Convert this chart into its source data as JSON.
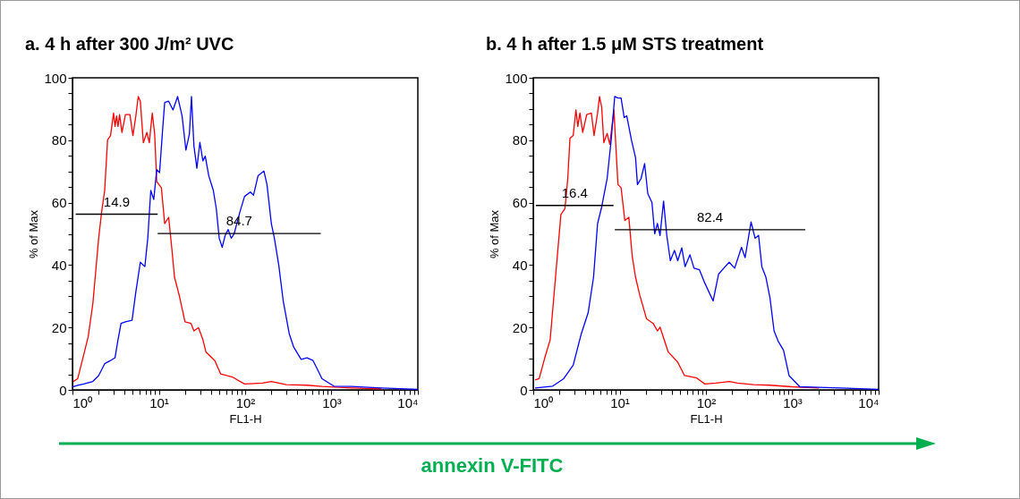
{
  "chart_data": [
    {
      "type": "line",
      "title": "a.     4 h after 300 J/m²  UVC",
      "xlabel": "FL1-H",
      "ylabel": "% of Max",
      "log": "x",
      "grid": false,
      "xlim": [
        1,
        10000
      ],
      "ylim": [
        0,
        100
      ],
      "xticks": [
        {
          "value": 1,
          "label": "10⁰"
        },
        {
          "value": 2,
          "label": null
        },
        {
          "value": 3,
          "label": null
        },
        {
          "value": 4,
          "label": null
        },
        {
          "value": 5,
          "label": null
        },
        {
          "value": 6,
          "label": null
        },
        {
          "value": 7,
          "label": null
        },
        {
          "value": 8,
          "label": null
        },
        {
          "value": 9,
          "label": null
        },
        {
          "value": 10,
          "label": "10¹"
        },
        {
          "value": 20,
          "label": null
        },
        {
          "value": 30,
          "label": null
        },
        {
          "value": 40,
          "label": null
        },
        {
          "value": 50,
          "label": null
        },
        {
          "value": 60,
          "label": null
        },
        {
          "value": 70,
          "label": null
        },
        {
          "value": 80,
          "label": null
        },
        {
          "value": 90,
          "label": null
        },
        {
          "value": 100,
          "label": "10²"
        },
        {
          "value": 200,
          "label": null
        },
        {
          "value": 300,
          "label": null
        },
        {
          "value": 400,
          "label": null
        },
        {
          "value": 500,
          "label": null
        },
        {
          "value": 600,
          "label": null
        },
        {
          "value": 700,
          "label": null
        },
        {
          "value": 800,
          "label": null
        },
        {
          "value": 900,
          "label": null
        },
        {
          "value": 1000,
          "label": "10³"
        },
        {
          "value": 2000,
          "label": null
        },
        {
          "value": 3000,
          "label": null
        },
        {
          "value": 4000,
          "label": null
        },
        {
          "value": 5000,
          "label": null
        },
        {
          "value": 6000,
          "label": null
        },
        {
          "value": 7000,
          "label": null
        },
        {
          "value": 8000,
          "label": null
        },
        {
          "value": 9000,
          "label": null
        },
        {
          "value": 10000,
          "label": "10⁴"
        }
      ],
      "yticks": [
        0,
        {
          "value": 5,
          "label": null
        },
        {
          "value": 10,
          "label": null
        },
        {
          "value": 15,
          "label": null
        },
        20,
        {
          "value": 25,
          "label": null
        },
        {
          "value": 30,
          "label": null
        },
        {
          "value": 35,
          "label": null
        },
        40,
        {
          "value": 45,
          "label": null
        },
        {
          "value": 50,
          "label": null
        },
        {
          "value": 55,
          "label": null
        },
        60,
        {
          "value": 65,
          "label": null
        },
        {
          "value": 70,
          "label": null
        },
        {
          "value": 75,
          "label": null
        },
        80,
        {
          "value": 85,
          "label": null
        },
        {
          "value": 90,
          "label": null
        },
        {
          "value": 95,
          "label": null
        },
        100
      ],
      "series": [
        {
          "color": "#ff0000",
          "x": [
            1.02,
            1.15,
            1.35,
            1.52,
            1.72,
            2.01,
            2.18,
            2.36,
            2.55,
            2.76,
            2.99,
            3.11,
            3.24,
            3.37,
            3.51,
            3.74,
            4.11,
            4.63,
            5.01,
            5.42,
            5.78,
            6.11,
            6.62,
            7.28,
            7.76,
            8.4,
            8.95,
            9.46,
            10.7,
            11.7,
            13,
            14.1,
            15.2,
            17.2,
            20.1,
            23.6,
            25.5,
            28.8,
            32.4,
            35.1,
            44.5,
            52.1,
            71.6,
            98.4,
            158,
            201,
            299,
            521,
            776,
            1715,
            3795
          ],
          "values": [
            2.7,
            3.6,
            11.3,
            17,
            27.5,
            48.6,
            57.2,
            63.9,
            80.1,
            81.5,
            88.7,
            84.4,
            87.8,
            84.4,
            88.2,
            82.5,
            88.2,
            88.2,
            81.5,
            87.8,
            94,
            92.5,
            79.2,
            82.5,
            79.2,
            88.7,
            82,
            66.7,
            64.8,
            53.3,
            55.3,
            45.7,
            36.1,
            30.4,
            21.8,
            21.3,
            18.9,
            19.9,
            16.1,
            12.2,
            9.4,
            5.1,
            4.1,
            1.9,
            2.2,
            2.7,
            1.7,
            1.5,
            1.1,
            0.6,
            0.3
          ]
        },
        {
          "color": "#0000ff",
          "x": [
            1,
            1.15,
            1.35,
            1.72,
            2.01,
            2.36,
            2.76,
            3.11,
            3.37,
            3.65,
            4.11,
            4.9,
            5.42,
            6.11,
            6.89,
            7.45,
            8.07,
            8.74,
            9.46,
            10.2,
            11.1,
            11.7,
            13,
            14.6,
            16.5,
            18.6,
            20.6,
            22.6,
            23.9,
            25.5,
            27.6,
            29.9,
            32.4,
            34.5,
            37.9,
            42.8,
            46.3,
            50.1,
            54.2,
            58.7,
            63.6,
            68.9,
            74.5,
            87.3,
            98.4,
            115,
            125,
            141,
            165,
            179,
            201,
            218,
            245,
            276,
            324,
            365,
            445,
            521,
            611,
            689,
            776,
            1066,
            1715,
            3795,
            10000
          ],
          "values": [
            1,
            1.5,
            1.9,
            2.7,
            4.6,
            8.4,
            9.4,
            10.3,
            16.1,
            21.3,
            21.8,
            22.3,
            31.4,
            40.9,
            39.5,
            48.6,
            63.9,
            61,
            70.6,
            69.6,
            83.9,
            92.1,
            92.5,
            89.7,
            94,
            87.8,
            76.8,
            82,
            94,
            78.2,
            71,
            79.3,
            73.4,
            74.9,
            68.6,
            63.9,
            58.1,
            48.6,
            45.7,
            49.5,
            51.4,
            48.6,
            50,
            57.2,
            62,
            63.4,
            62.4,
            68.6,
            70.1,
            65.8,
            53.3,
            48.6,
            40,
            28.5,
            18,
            13.7,
            9.8,
            10.3,
            9.4,
            6.5,
            3.6,
            1.2,
            1.1,
            0.6,
            0.2
          ]
        },
        {
          "color": "#000000",
          "x": [
            1.09,
            9.7
          ],
          "values": [
            56.3,
            56.3
          ]
        },
        {
          "color": "#000000",
          "x": [
            9.7,
            751
          ],
          "values": [
            50.1,
            50.1
          ]
        }
      ],
      "annotations": [
        {
          "text": "14.9",
          "x": 3.25,
          "y": 56.3
        },
        {
          "text": "84.7",
          "x": 85.3,
          "y": 50.1
        },
        "annexin V-FITC"
      ]
    },
    {
      "type": "line",
      "title": "b.     4 h after 1.5 μM STS treatment",
      "xlabel": "FL1-H",
      "ylabel": "% of Max",
      "log": "x",
      "grid": false,
      "xlim": [
        1,
        10000
      ],
      "ylim": [
        0,
        100
      ],
      "xticks": [
        {
          "value": 1,
          "label": "10⁰"
        },
        {
          "value": 2,
          "label": null
        },
        {
          "value": 3,
          "label": null
        },
        {
          "value": 4,
          "label": null
        },
        {
          "value": 5,
          "label": null
        },
        {
          "value": 6,
          "label": null
        },
        {
          "value": 7,
          "label": null
        },
        {
          "value": 8,
          "label": null
        },
        {
          "value": 9,
          "label": null
        },
        {
          "value": 10,
          "label": "10¹"
        },
        {
          "value": 20,
          "label": null
        },
        {
          "value": 30,
          "label": null
        },
        {
          "value": 40,
          "label": null
        },
        {
          "value": 50,
          "label": null
        },
        {
          "value": 60,
          "label": null
        },
        {
          "value": 70,
          "label": null
        },
        {
          "value": 80,
          "label": null
        },
        {
          "value": 90,
          "label": null
        },
        {
          "value": 100,
          "label": "10²"
        },
        {
          "value": 200,
          "label": null
        },
        {
          "value": 300,
          "label": null
        },
        {
          "value": 400,
          "label": null
        },
        {
          "value": 500,
          "label": null
        },
        {
          "value": 600,
          "label": null
        },
        {
          "value": 700,
          "label": null
        },
        {
          "value": 800,
          "label": null
        },
        {
          "value": 900,
          "label": null
        },
        {
          "value": 1000,
          "label": "10³"
        },
        {
          "value": 2000,
          "label": null
        },
        {
          "value": 3000,
          "label": null
        },
        {
          "value": 4000,
          "label": null
        },
        {
          "value": 5000,
          "label": null
        },
        {
          "value": 6000,
          "label": null
        },
        {
          "value": 7000,
          "label": null
        },
        {
          "value": 8000,
          "label": null
        },
        {
          "value": 9000,
          "label": null
        },
        {
          "value": 10000,
          "label": "10⁴"
        }
      ],
      "yticks": [
        0,
        {
          "value": 5,
          "label": null
        },
        {
          "value": 10,
          "label": null
        },
        {
          "value": 15,
          "label": null
        },
        20,
        {
          "value": 25,
          "label": null
        },
        {
          "value": 30,
          "label": null
        },
        {
          "value": 35,
          "label": null
        },
        40,
        {
          "value": 45,
          "label": null
        },
        {
          "value": 50,
          "label": null
        },
        {
          "value": 55,
          "label": null
        },
        60,
        {
          "value": 65,
          "label": null
        },
        {
          "value": 70,
          "label": null
        },
        {
          "value": 75,
          "label": null
        },
        80,
        {
          "value": 85,
          "label": null
        },
        {
          "value": 90,
          "label": null
        },
        {
          "value": 95,
          "label": null
        },
        100
      ],
      "series": [
        {
          "color": "#ff0000",
          "x": [
            1.05,
            1.17,
            1.36,
            1.57,
            1.81,
            2.09,
            2.33,
            2.51,
            2.66,
            2.9,
            3.12,
            3.28,
            3.47,
            3.74,
            4.16,
            4.71,
            5.06,
            5.56,
            5.85,
            6.2,
            6.57,
            7.17,
            7.7,
            8.59,
            9.57,
            10.4,
            11.5,
            12.8,
            14,
            15.3,
            17.1,
            20.5,
            24.5,
            27.4,
            29.4,
            32.8,
            36.5,
            47.1,
            56.5,
            78.2,
            97.1,
            130,
            186,
            232,
            357,
            552,
            986,
            2032
          ],
          "values": [
            3.2,
            3.6,
            10.3,
            16.1,
            36.1,
            56.2,
            58.1,
            67.7,
            80.6,
            81.5,
            89.7,
            84.4,
            88.7,
            82.5,
            88.2,
            88.7,
            81.5,
            88.7,
            94,
            90.6,
            79.2,
            82.2,
            78.7,
            89.7,
            65.8,
            64.8,
            54.3,
            55.3,
            42.8,
            36.1,
            30.4,
            22.8,
            21.3,
            18.9,
            20.1,
            16.1,
            12.2,
            8.9,
            4.6,
            3.8,
            1.9,
            2.2,
            2.7,
            2.2,
            1.7,
            1.5,
            1,
            0.6
          ]
        },
        {
          "color": "#0000ff",
          "x": [
            1.05,
            1.68,
            2.25,
            2.9,
            3.6,
            4.32,
            4.99,
            5.56,
            6.2,
            7.17,
            7.99,
            8.77,
            9.57,
            10.4,
            11.3,
            12.1,
            13.7,
            15.3,
            16.1,
            17.7,
            19.5,
            21.2,
            23.7,
            25.5,
            27.4,
            29.4,
            32.3,
            35.2,
            38.7,
            43.2,
            47.1,
            52.5,
            57.3,
            65.2,
            72.7,
            84.1,
            97.1,
            121,
            140,
            161,
            186,
            215,
            258,
            284,
            333,
            371,
            407,
            444,
            495,
            552,
            615,
            686,
            792,
            917,
            1225,
            2032,
            3631,
            10000
          ],
          "values": [
            0.6,
            1.2,
            3.6,
            7.9,
            18,
            24.7,
            36.1,
            53.3,
            58.6,
            67.7,
            80.1,
            94,
            93.5,
            93.5,
            87.3,
            87.8,
            80.1,
            74.4,
            65.8,
            67.7,
            72.5,
            62.9,
            60,
            50,
            53.3,
            49.5,
            60.5,
            49.5,
            41.4,
            44.7,
            41.4,
            45.5,
            39.5,
            43.3,
            39,
            38.5,
            34.2,
            28.5,
            37.1,
            39,
            40.9,
            39,
            45.7,
            42.4,
            53.8,
            48.6,
            49.5,
            39.5,
            36.1,
            29.4,
            18.9,
            15.6,
            12.7,
            4.6,
            1,
            0.8,
            0.6,
            0.2
          ]
        },
        {
          "color": "#000000",
          "x": [
            1.07,
            8.5
          ],
          "values": [
            59.1,
            59.1
          ]
        },
        {
          "color": "#000000",
          "x": [
            8.8,
            1415
          ],
          "values": [
            51.3,
            51.3
          ]
        }
      ],
      "annotations": [
        {
          "text": "16.4",
          "x": 3.02,
          "y": 59.1
        },
        {
          "text": "82.4",
          "x": 111.6,
          "y": 51.3
        }
      ]
    }
  ]
}
